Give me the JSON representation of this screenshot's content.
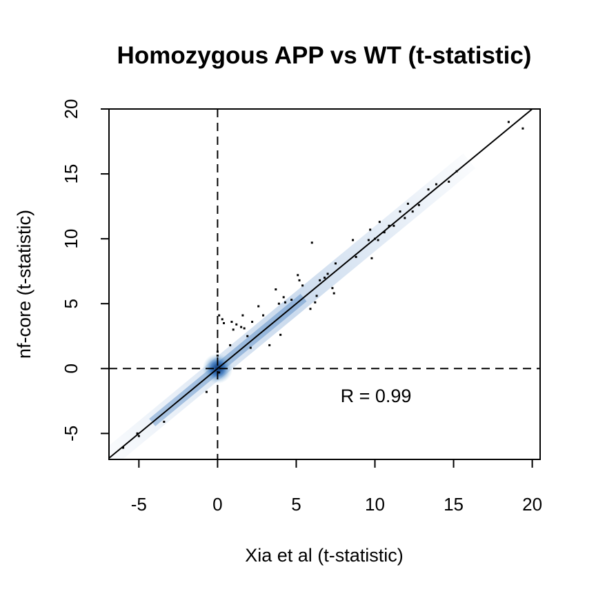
{
  "chart_data": {
    "type": "scatter",
    "title": "Homozygous APP vs WT (t-statistic)",
    "xlabel": "Xia et al (t-statistic)",
    "ylabel": "nf-core (t-statistic)",
    "xlim": [
      -6.9,
      20.5
    ],
    "ylim": [
      -7.0,
      20.0
    ],
    "xticks": [
      "-5",
      "0",
      "5",
      "10",
      "15",
      "20"
    ],
    "yticks": [
      "-5",
      "0",
      "5",
      "10",
      "15",
      "20"
    ],
    "annotation": "R = 0.99",
    "reference_lines": {
      "x": 0,
      "y": 0,
      "style": "dashed"
    },
    "identity_line": "y = x",
    "density_color": "#2b6cb8",
    "point_color": "#000000",
    "points": [
      [
        -6.0,
        -6.1
      ],
      [
        -5.0,
        -5.2
      ],
      [
        -5.1,
        -5.0
      ],
      [
        -3.4,
        -4.1
      ],
      [
        -0.7,
        -1.8
      ],
      [
        0.1,
        -0.3
      ],
      [
        0.0,
        1.0
      ],
      [
        0.0,
        1.3
      ],
      [
        0.1,
        4.1
      ],
      [
        0.3,
        3.8
      ],
      [
        0.4,
        3.5
      ],
      [
        0.9,
        3.6
      ],
      [
        0.8,
        1.8
      ],
      [
        1.0,
        3.0
      ],
      [
        1.2,
        3.4
      ],
      [
        1.5,
        3.2
      ],
      [
        1.6,
        4.1
      ],
      [
        1.7,
        3.1
      ],
      [
        1.9,
        2.5
      ],
      [
        2.1,
        1.6
      ],
      [
        2.2,
        3.6
      ],
      [
        2.6,
        4.8
      ],
      [
        2.9,
        4.1
      ],
      [
        3.3,
        1.8
      ],
      [
        3.7,
        6.1
      ],
      [
        3.9,
        5.0
      ],
      [
        4.0,
        2.6
      ],
      [
        4.2,
        5.5
      ],
      [
        4.3,
        5.1
      ],
      [
        4.7,
        5.3
      ],
      [
        5.1,
        7.2
      ],
      [
        5.2,
        6.8
      ],
      [
        5.4,
        6.4
      ],
      [
        5.9,
        4.6
      ],
      [
        6.0,
        9.7
      ],
      [
        6.2,
        5.1
      ],
      [
        6.3,
        5.6
      ],
      [
        6.5,
        6.8
      ],
      [
        6.8,
        7.0
      ],
      [
        7.0,
        7.3
      ],
      [
        7.3,
        6.2
      ],
      [
        7.4,
        5.8
      ],
      [
        7.5,
        8.1
      ],
      [
        8.6,
        9.9
      ],
      [
        8.8,
        8.6
      ],
      [
        9.6,
        9.9
      ],
      [
        9.7,
        10.7
      ],
      [
        9.8,
        8.5
      ],
      [
        10.0,
        10.0
      ],
      [
        10.2,
        9.9
      ],
      [
        10.3,
        11.3
      ],
      [
        10.6,
        10.5
      ],
      [
        10.9,
        11.0
      ],
      [
        11.2,
        11.0
      ],
      [
        11.6,
        12.1
      ],
      [
        11.9,
        11.6
      ],
      [
        12.1,
        12.7
      ],
      [
        12.4,
        12.1
      ],
      [
        12.8,
        12.6
      ],
      [
        13.4,
        13.8
      ],
      [
        13.9,
        14.2
      ],
      [
        14.7,
        14.4
      ],
      [
        15.2,
        15.2
      ],
      [
        18.5,
        19.0
      ],
      [
        19.4,
        18.5
      ]
    ]
  }
}
